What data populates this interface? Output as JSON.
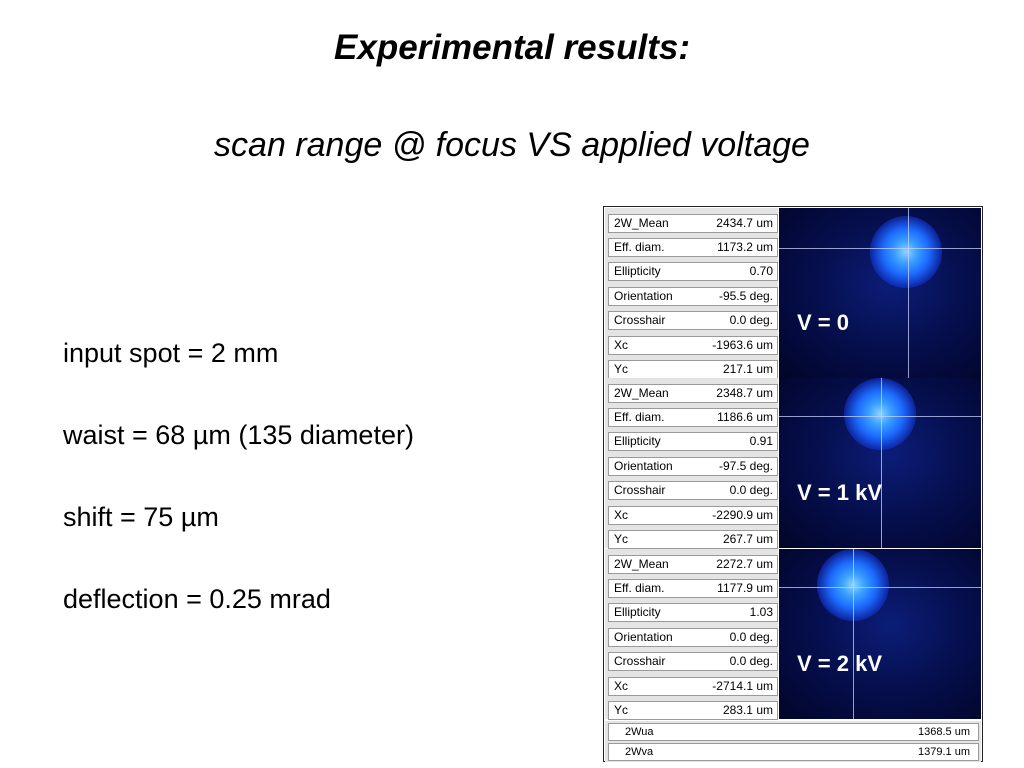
{
  "title": "Experimental results:",
  "subtitle": "scan range @ focus VS applied voltage",
  "bullets": [
    "input spot = 2 mm",
    "waist = 68 µm (135 diameter)",
    "shift = 75 µm",
    "deflection = 0.25 mrad"
  ],
  "panels": [
    {
      "voltage_label": "V = 0",
      "params": [
        {
          "label": "2W_Mean",
          "value": "2434.7 um"
        },
        {
          "label": "Eff. diam.",
          "value": "1173.2 um"
        },
        {
          "label": "Ellipticity",
          "value": "0.70"
        },
        {
          "label": "Orientation",
          "value": "-95.5 deg."
        },
        {
          "label": "Crosshair",
          "value": "0.0 deg."
        },
        {
          "label": "Xc",
          "value": "-1963.6 um"
        },
        {
          "label": "Yc",
          "value": "217.1 um"
        }
      ]
    },
    {
      "voltage_label": "V = 1 kV",
      "params": [
        {
          "label": "2W_Mean",
          "value": "2348.7 um"
        },
        {
          "label": "Eff. diam.",
          "value": "1186.6 um"
        },
        {
          "label": "Ellipticity",
          "value": "0.91"
        },
        {
          "label": "Orientation",
          "value": "-97.5 deg."
        },
        {
          "label": "Crosshair",
          "value": "0.0 deg."
        },
        {
          "label": "Xc",
          "value": "-2290.9 um"
        },
        {
          "label": "Yc",
          "value": "267.7 um"
        }
      ]
    },
    {
      "voltage_label": "V = 2 kV",
      "params": [
        {
          "label": "2W_Mean",
          "value": "2272.7 um"
        },
        {
          "label": "Eff. diam.",
          "value": "1177.9 um"
        },
        {
          "label": "Ellipticity",
          "value": "1.03"
        },
        {
          "label": "Orientation",
          "value": "0.0 deg."
        },
        {
          "label": "Crosshair",
          "value": "0.0 deg."
        },
        {
          "label": "Xc",
          "value": "-2714.1 um"
        },
        {
          "label": "Yc",
          "value": "283.1 um"
        }
      ]
    }
  ],
  "footer": [
    {
      "label": "2Wua",
      "value": "1368.5 um"
    },
    {
      "label": "2Wva",
      "value": "1379.1 um"
    }
  ]
}
